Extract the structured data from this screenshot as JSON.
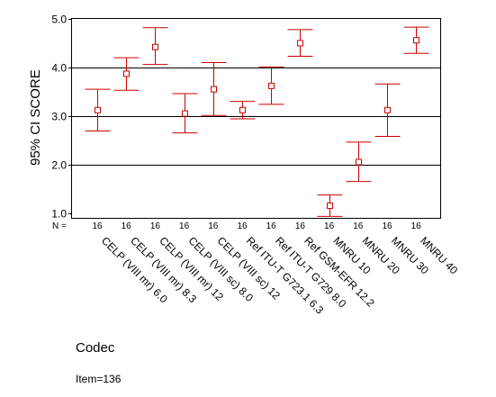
{
  "chart_data": {
    "type": "errorbar",
    "ylabel": "95% CI SCORE",
    "xlabel": "Codec",
    "footnote": "Item=136",
    "n_label": "N =",
    "ylim": [
      0.9,
      5.0
    ],
    "yticks": [
      "1.0",
      "2.0",
      "3.0",
      "4.0",
      "5.0"
    ],
    "ytick_values": [
      1.0,
      2.0,
      3.0,
      4.0,
      5.0
    ],
    "gridlines_at": [
      2.0,
      3.0,
      4.0
    ],
    "color": "#cc0000",
    "categories": [
      "CELP (VIII mr) 6.0",
      "CELP (VIII mr) 8.3",
      "CELP (VIII mr) 12",
      "CELP (VIII sc) 8.0",
      "CELP (VIII sc) 12",
      "Ref ITU-T G723.1 6.3",
      "Ref ITU-T G729 8.0",
      "Ref GSM-EFR 12.2",
      "MNRU 10",
      "MNRU 20",
      "MNRU 30",
      "MNRU 40"
    ],
    "n": [
      "16",
      "16",
      "16",
      "16",
      "16",
      "16",
      "16",
      "16",
      "16",
      "16",
      "16",
      "16"
    ],
    "mean": [
      3.12,
      3.87,
      4.42,
      3.05,
      3.55,
      3.12,
      3.62,
      4.5,
      1.15,
      2.05,
      3.12,
      4.56
    ],
    "upper": [
      3.55,
      4.2,
      4.82,
      3.46,
      4.1,
      3.3,
      4.01,
      4.78,
      1.37,
      2.46,
      3.66,
      4.83
    ],
    "lower": [
      2.69,
      3.53,
      4.06,
      2.65,
      3.01,
      2.94,
      3.24,
      4.23,
      0.93,
      1.65,
      2.58,
      4.29
    ]
  }
}
